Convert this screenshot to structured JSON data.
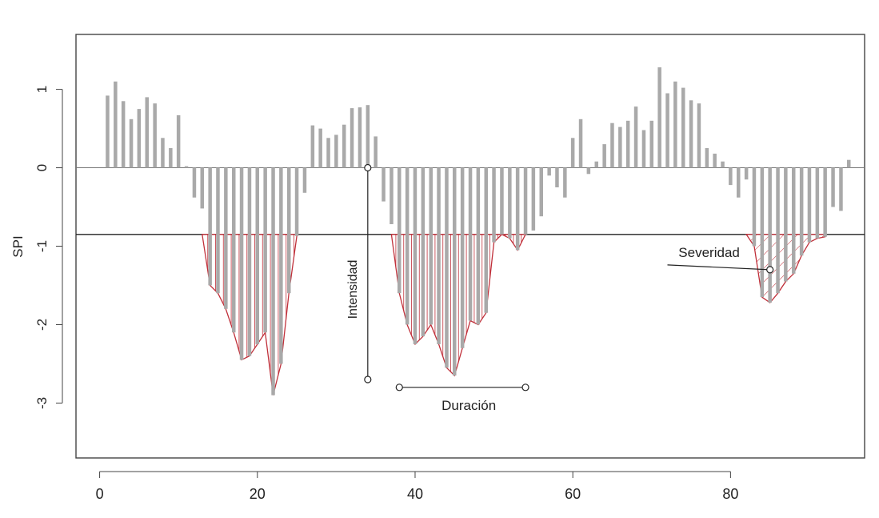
{
  "chart_data": {
    "type": "bar",
    "title": "",
    "xlabel": "",
    "ylabel": "SPI",
    "xlim": [
      -3,
      97
    ],
    "ylim": [
      -3.7,
      1.7
    ],
    "x_ticks": [
      0,
      20,
      40,
      60,
      80
    ],
    "x_tick_labels": [
      "0",
      "20",
      "40",
      "60",
      "80"
    ],
    "y_ticks": [
      1,
      0,
      -1,
      -2,
      -3
    ],
    "y_tick_labels": [
      "1",
      "0",
      "-1",
      "-2",
      "-3"
    ],
    "threshold": -0.85,
    "grid": false,
    "legend": "none",
    "colors": {
      "bars": "#a9a9a9",
      "drought_outline": "#c0303a",
      "threshold_line": "#222222",
      "annotation": "#222222"
    },
    "series": [
      {
        "x": [
          1,
          2,
          3,
          4,
          5,
          6,
          7,
          8,
          9,
          10,
          11,
          12,
          13,
          14,
          15,
          16,
          17,
          18,
          19,
          20,
          21,
          22,
          23,
          24,
          25,
          26,
          27,
          28,
          29,
          30,
          31,
          32,
          33,
          34,
          35,
          36,
          37,
          38,
          39,
          40,
          41,
          42,
          43,
          44,
          45,
          46,
          47,
          48,
          49,
          50,
          51,
          52,
          53,
          54,
          55,
          56,
          57,
          58,
          59,
          60,
          61,
          62,
          63,
          64,
          65,
          66,
          67,
          68,
          69,
          70,
          71,
          72,
          73,
          74,
          75,
          76,
          77,
          78,
          79,
          80,
          81,
          82,
          83,
          84,
          85,
          86,
          87,
          88,
          89,
          90,
          91,
          92,
          93,
          94,
          95
        ],
        "values": [
          0.92,
          1.1,
          0.85,
          0.62,
          0.75,
          0.9,
          0.82,
          0.38,
          0.25,
          0.67,
          0.02,
          -0.38,
          -0.52,
          -1.5,
          -1.6,
          -1.8,
          -2.1,
          -2.45,
          -2.4,
          -2.25,
          -2.1,
          -2.9,
          -2.5,
          -1.6,
          -0.87,
          -0.32,
          0.54,
          0.5,
          0.38,
          0.42,
          0.55,
          0.76,
          0.77,
          0.8,
          0.4,
          -0.43,
          -0.72,
          -1.6,
          -2.0,
          -2.25,
          -2.15,
          -2.0,
          -2.25,
          -2.55,
          -2.65,
          -2.3,
          -1.95,
          -2.0,
          -1.85,
          -0.95,
          -0.85,
          -0.9,
          -1.05,
          -0.85,
          -0.8,
          -0.62,
          -0.1,
          -0.25,
          -0.38,
          0.38,
          0.62,
          -0.08,
          0.08,
          0.3,
          0.57,
          0.52,
          0.6,
          0.78,
          0.48,
          0.6,
          1.28,
          0.95,
          1.1,
          1.02,
          0.86,
          0.82,
          0.25,
          0.18,
          0.08,
          -0.22,
          -0.38,
          -0.15,
          -1.0,
          -1.65,
          -1.72,
          -1.6,
          -1.45,
          -1.35,
          -1.12,
          -0.95,
          -0.9,
          -0.88,
          -0.5,
          -0.55,
          0.1
        ]
      }
    ],
    "drought_events": [
      {
        "start": 13,
        "end": 25,
        "style": "vertical-hatch"
      },
      {
        "start": 37,
        "end": 54,
        "style": "vertical-hatch"
      },
      {
        "start": 82,
        "end": 92,
        "style": "diagonal-hatch"
      }
    ],
    "annotations": [
      {
        "text": "Intensidad",
        "kind": "intensity",
        "x": 34,
        "y_top": 0,
        "y_bottom": -2.7
      },
      {
        "text": "Duración",
        "kind": "duration",
        "x_start": 38,
        "x_end": 54,
        "y": -2.8
      },
      {
        "text": "Severidad",
        "kind": "severity",
        "x_from": 72,
        "x_to": 85,
        "y": -1.3
      }
    ]
  }
}
